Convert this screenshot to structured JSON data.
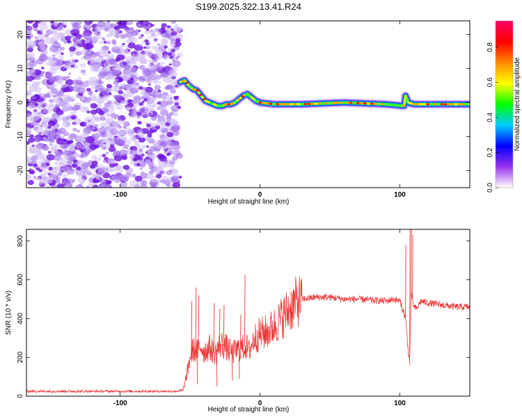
{
  "title": "S199.2025.322.13.41.R24",
  "chart_data": [
    {
      "type": "heatmap",
      "name": "spectrogram",
      "xlabel": "Height of straight line (km)",
      "ylabel": "Frequency (Hz)",
      "xlim": [
        -167,
        150
      ],
      "ylim": [
        -25,
        24
      ],
      "xticks": [
        {
          "v": -100,
          "label": "-100"
        },
        {
          "v": 0,
          "label": "0"
        },
        {
          "v": 100,
          "label": "100"
        }
      ],
      "yticks": [
        {
          "v": -20,
          "label": "-20"
        },
        {
          "v": -10,
          "label": "-10"
        },
        {
          "v": 0,
          "label": "0"
        },
        {
          "v": 10,
          "label": "10"
        },
        {
          "v": 20,
          "label": "20"
        }
      ],
      "noise_region_end_km": -57,
      "ridge": {
        "x": [
          -57,
          -54,
          -51,
          -48,
          -45,
          -42,
          -39,
          -36,
          -33,
          -30,
          -27,
          -24,
          -21,
          -18,
          -15,
          -12,
          -9,
          -6,
          -3,
          0,
          10,
          30,
          60,
          90,
          103,
          104,
          106,
          110,
          130,
          150
        ],
        "f": [
          6,
          6.5,
          5,
          4,
          3.5,
          2,
          0.5,
          0,
          -0.5,
          -1,
          -1,
          -0.5,
          -0.5,
          0,
          1,
          2,
          2.5,
          1.5,
          0.5,
          0,
          -0.5,
          -0.5,
          0,
          -0.5,
          -1,
          2,
          0,
          -0.5,
          -0.5,
          -0.5
        ]
      },
      "colorbar": {
        "label": "Normalized spectral amplitude",
        "range": [
          0.0,
          0.95
        ],
        "ticks": [
          {
            "v": 0.0,
            "label": "0.0"
          },
          {
            "v": 0.2,
            "label": "0.2"
          },
          {
            "v": 0.4,
            "label": "0.4"
          },
          {
            "v": 0.6,
            "label": "0.6"
          },
          {
            "v": 0.8,
            "label": "0.8"
          }
        ],
        "colors": [
          "#ffffff",
          "#9933ee",
          "#0000ff",
          "#00ccff",
          "#00ff00",
          "#ffff00",
          "#ff8800",
          "#ff0000",
          "#ff0066"
        ]
      }
    },
    {
      "type": "line",
      "name": "snr",
      "xlabel": "Height of straight line (km)",
      "ylabel": "SNR (10 * v/v)",
      "xlim": [
        -167,
        150
      ],
      "ylim": [
        0,
        860
      ],
      "color": "#ee3333",
      "xticks": [
        {
          "v": -100,
          "label": "-100"
        },
        {
          "v": 0,
          "label": "0"
        },
        {
          "v": 100,
          "label": "100"
        }
      ],
      "yticks": [
        {
          "v": 0,
          "label": "0"
        },
        {
          "v": 200,
          "label": "200"
        },
        {
          "v": 400,
          "label": "400"
        },
        {
          "v": 600,
          "label": "600"
        },
        {
          "v": 800,
          "label": "800"
        }
      ],
      "x": [
        -167,
        -150,
        -130,
        -110,
        -90,
        -70,
        -60,
        -55,
        -52,
        -50,
        -48,
        -45,
        -42,
        -40,
        -36,
        -32,
        -28,
        -24,
        -20,
        -16,
        -12,
        -10,
        -8,
        -4,
        0,
        5,
        10,
        15,
        20,
        25,
        30,
        40,
        50,
        60,
        70,
        80,
        90,
        95,
        100,
        102,
        104,
        105,
        106,
        107,
        108,
        109,
        110,
        112,
        115,
        120,
        130,
        140,
        150
      ],
      "y": [
        25,
        25,
        25,
        25,
        25,
        25,
        25,
        30,
        120,
        200,
        240,
        230,
        260,
        230,
        250,
        220,
        270,
        250,
        220,
        240,
        250,
        260,
        230,
        300,
        320,
        330,
        360,
        400,
        440,
        480,
        500,
        510,
        510,
        500,
        500,
        495,
        490,
        500,
        490,
        450,
        400,
        320,
        230,
        180,
        520,
        500,
        460,
        450,
        490,
        480,
        470,
        460,
        460
      ],
      "spikes": [
        {
          "x": -49,
          "y": 490
        },
        {
          "x": -46,
          "y": 560
        },
        {
          "x": -44,
          "y": 520
        },
        {
          "x": -33,
          "y": 480
        },
        {
          "x": -29,
          "y": 450
        },
        {
          "x": -26,
          "y": 470
        },
        {
          "x": -11,
          "y": 625
        },
        {
          "x": -14,
          "y": 420
        },
        {
          "x": 104,
          "y": 780
        },
        {
          "x": 107,
          "y": 860
        },
        {
          "x": 108,
          "y": 860
        },
        {
          "x": 109,
          "y": 830
        },
        {
          "x": -45,
          "y": 60
        },
        {
          "x": -31,
          "y": 50
        },
        {
          "x": -20,
          "y": 80
        },
        {
          "x": -15,
          "y": 90
        },
        {
          "x": 107,
          "y": 160
        }
      ]
    }
  ]
}
